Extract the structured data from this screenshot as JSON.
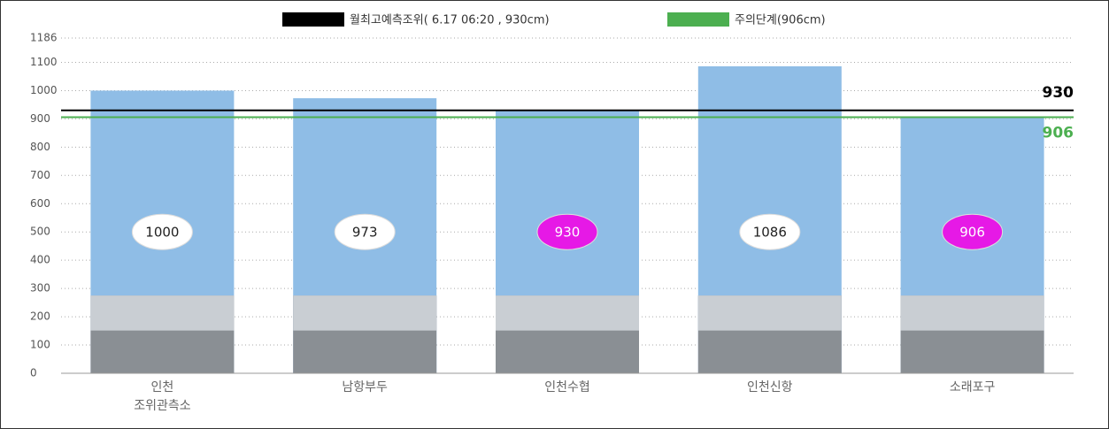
{
  "chart_data": {
    "type": "bar",
    "categories": [
      "인천\n조위관측소",
      "남항부두",
      "인천수협",
      "인천신항",
      "소래포구"
    ],
    "values": [
      1000,
      973,
      930,
      1086,
      906
    ],
    "color": "#8fbde6",
    "label_colors": [
      "#ffffff",
      "#ffffff",
      "#e619e6",
      "#ffffff",
      "#e619e6"
    ],
    "ylim": [
      0,
      1186
    ],
    "yticks": [
      0,
      100,
      200,
      300,
      400,
      500,
      600,
      700,
      800,
      900,
      1000,
      1100,
      1186
    ],
    "grid": true,
    "reference_lines": [
      {
        "name": "월최고예측조위( 6.17  06:20 , 930cm)",
        "value": 930,
        "color": "#000000"
      },
      {
        "name": "주의단계(906cm)",
        "value": 906,
        "color": "#4caf50"
      }
    ]
  }
}
